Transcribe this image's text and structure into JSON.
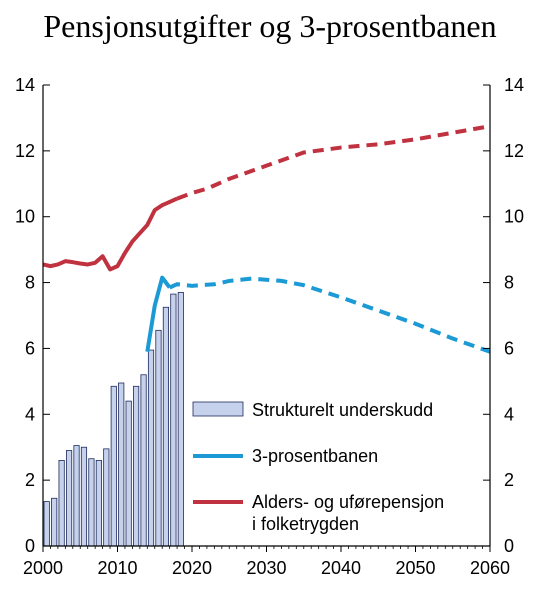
{
  "title": "Pensjonsutgifter og 3-prosentbanen",
  "colors": {
    "bar_fill": "#c6d2ec",
    "bar_stroke": "#1f2a5c",
    "three_percent": "#1b9ad6",
    "pension": "#c0323f"
  },
  "chart_data": {
    "type": "bar+line",
    "title": "Pensjonsutgifter og 3-prosentbanen",
    "xlim": [
      2000,
      2060
    ],
    "ylim": [
      0,
      14
    ],
    "x_ticks": [
      2000,
      2010,
      2020,
      2030,
      2040,
      2050,
      2060
    ],
    "y_ticks": [
      0,
      2,
      4,
      6,
      8,
      10,
      12,
      14
    ],
    "right_axis": true,
    "legend_position": "lower-right",
    "legend": [
      "Strukturelt underskudd",
      "3-prosentbanen",
      "Alders- og uførepensjon",
      "i  folketrygden"
    ],
    "series": [
      {
        "name": "Strukturelt underskudd",
        "kind": "bar",
        "x": [
          2000,
          2001,
          2002,
          2003,
          2004,
          2005,
          2006,
          2007,
          2008,
          2009,
          2010,
          2011,
          2012,
          2013,
          2014,
          2015,
          2016,
          2017,
          2018
        ],
        "values": [
          1.35,
          1.45,
          2.6,
          2.9,
          3.05,
          3.0,
          2.65,
          2.6,
          2.95,
          4.85,
          4.95,
          4.4,
          4.85,
          5.2,
          5.95,
          6.55,
          7.25,
          7.65,
          7.7
        ]
      },
      {
        "name": "3-prosentbanen",
        "kind": "line",
        "solid": {
          "x": [
            2014,
            2015,
            2016,
            2017
          ],
          "y": [
            5.9,
            7.3,
            8.15,
            7.85
          ]
        },
        "dashed": {
          "x": [
            2017,
            2018,
            2020,
            2023,
            2025,
            2028,
            2032,
            2035,
            2040,
            2045,
            2050,
            2055,
            2060
          ],
          "y": [
            7.85,
            7.95,
            7.9,
            7.95,
            8.05,
            8.12,
            8.05,
            7.92,
            7.55,
            7.15,
            6.75,
            6.3,
            5.9
          ]
        }
      },
      {
        "name": "Alders- og uførepensjon i folketrygden",
        "kind": "line",
        "solid": {
          "x": [
            2000,
            2001,
            2002,
            2003,
            2004,
            2005,
            2006,
            2007,
            2008,
            2009,
            2010,
            2011,
            2012,
            2013,
            2014,
            2015,
            2016,
            2017,
            2018
          ],
          "y": [
            8.55,
            8.5,
            8.55,
            8.65,
            8.62,
            8.58,
            8.55,
            8.6,
            8.8,
            8.4,
            8.5,
            8.9,
            9.25,
            9.5,
            9.75,
            10.2,
            10.35,
            10.45,
            10.55
          ]
        },
        "dashed": {
          "x": [
            2018,
            2020,
            2022,
            2025,
            2030,
            2035,
            2040,
            2045,
            2050,
            2055,
            2060
          ],
          "y": [
            10.55,
            10.72,
            10.85,
            11.15,
            11.55,
            11.95,
            12.1,
            12.2,
            12.35,
            12.55,
            12.75
          ]
        }
      }
    ]
  }
}
